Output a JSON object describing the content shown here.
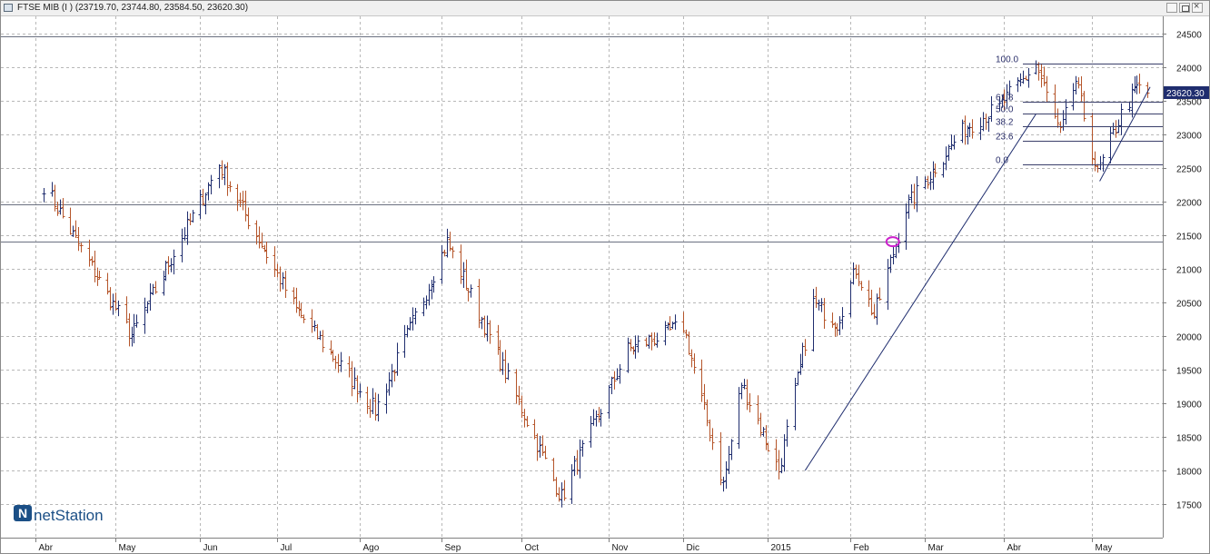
{
  "window": {
    "title": "FTSE MIB (I ) (23719.70, 23744.80, 23584.50, 23620.30)"
  },
  "logo": {
    "text": "netStation",
    "letter": "N"
  },
  "colors": {
    "up_bar": "#1f2d6e",
    "down_bar": "#b5552a",
    "grid": "#b8b8b8",
    "level_line": "#6a7080",
    "trend_line": "#1f2d6e",
    "marker": "#cc22cc",
    "price_tag_bg": "#1f2d6e",
    "logo": "#1b4f86"
  },
  "chart_data": {
    "type": "ohlc",
    "title": "FTSE MIB (I )",
    "ohlc_summary": {
      "open": 23719.7,
      "high": 23744.8,
      "low": 23584.5,
      "close": 23620.3
    },
    "last_price_label": "23620.30",
    "y_axis": {
      "side": "right",
      "ylim": [
        17000,
        24750
      ],
      "ticks": [
        17500,
        18000,
        18500,
        19000,
        19500,
        20000,
        20500,
        21000,
        21500,
        22000,
        22500,
        23000,
        23500,
        24000,
        24500
      ]
    },
    "x_axis": {
      "labels": [
        "Abr",
        "May",
        "Jun",
        "Jul",
        "Ago",
        "Sep",
        "Oct",
        "Nov",
        "Dic",
        "2015",
        "Feb",
        "Mar",
        "Abr",
        "May"
      ]
    },
    "grid": true,
    "horizontal_levels": [
      24450,
      21950,
      21400
    ],
    "key_points": [
      {
        "date": "2014-04-04",
        "value": 22250
      },
      {
        "date": "2014-05-07",
        "value": 20000
      },
      {
        "date": "2014-06-09",
        "value": 22550
      },
      {
        "date": "2014-07-08",
        "value": 20400
      },
      {
        "date": "2014-08-07",
        "value": 18900
      },
      {
        "date": "2014-09-03",
        "value": 21400
      },
      {
        "date": "2014-10-16",
        "value": 17600
      },
      {
        "date": "2014-11-10",
        "value": 19800
      },
      {
        "date": "2014-12-01",
        "value": 20150
      },
      {
        "date": "2014-12-16",
        "value": 17800
      },
      {
        "date": "2014-12-23",
        "value": 19300
      },
      {
        "date": "2015-01-06",
        "value": 18000
      },
      {
        "date": "2015-01-19",
        "value": 20500
      },
      {
        "date": "2015-01-28",
        "value": 20200
      },
      {
        "date": "2015-02-04",
        "value": 21000
      },
      {
        "date": "2015-02-11",
        "value": 20300
      },
      {
        "date": "2015-02-23",
        "value": 21900
      },
      {
        "date": "2015-03-02",
        "value": 22300
      },
      {
        "date": "2015-03-17",
        "value": 23100
      },
      {
        "date": "2015-03-30",
        "value": 23400
      },
      {
        "date": "2015-04-13",
        "value": 24050
      },
      {
        "date": "2015-04-22",
        "value": 23000
      },
      {
        "date": "2015-04-28",
        "value": 23800
      },
      {
        "date": "2015-05-06",
        "value": 22400
      },
      {
        "date": "2015-05-15",
        "value": 23300
      },
      {
        "date": "2015-05-21",
        "value": 23700
      },
      {
        "date": "2015-05-25",
        "value": 23620
      }
    ],
    "fibonacci": {
      "high": 24050,
      "low": 22550,
      "levels": [
        {
          "label": "100.0",
          "ratio": 1.0
        },
        {
          "label": "61.8",
          "ratio": 0.618
        },
        {
          "label": "50.0",
          "ratio": 0.5
        },
        {
          "label": "38.2",
          "ratio": 0.382
        },
        {
          "label": "23.6",
          "ratio": 0.236
        },
        {
          "label": "0.0",
          "ratio": 0.0
        }
      ]
    },
    "trend_lines": [
      {
        "from": {
          "date": "2015-01-16",
          "value": 18000
        },
        "to": {
          "date": "2015-04-13",
          "value": 23300
        }
      },
      {
        "from": {
          "date": "2015-05-07",
          "value": 22300
        },
        "to": {
          "date": "2015-05-26",
          "value": 23700
        }
      }
    ],
    "marker": {
      "date": "2015-02-18",
      "value": 21400
    }
  }
}
